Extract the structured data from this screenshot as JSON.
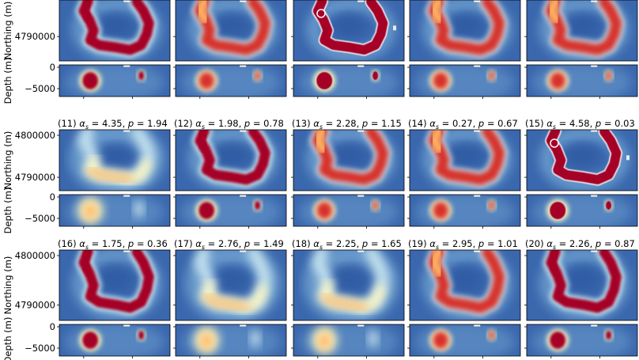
{
  "chart_data": {
    "type": "heatmap",
    "description_grid": "3 rows x 5 columns of paired map-view (Northing) and depth-section panels",
    "colormap": [
      "#3a67ad",
      "#6d9fcf",
      "#c5e2ee",
      "#fff8c0",
      "#fcb060",
      "#d7302b",
      "#a50026"
    ],
    "ylabels": {
      "northing": "Northing (m)",
      "depth": "Depth (m)"
    },
    "northing_ticks": [
      {
        "value": 4800000,
        "label": "4800000"
      },
      {
        "value": 4790000,
        "label": "4790000"
      }
    ],
    "depth_ticks": [
      {
        "value": 0,
        "label": "0"
      },
      {
        "value": -5000,
        "label": "−5000"
      }
    ],
    "panels": [
      {
        "index": 6,
        "label": "",
        "alpha_s": null,
        "p": null,
        "style": "sharp"
      },
      {
        "index": 7,
        "label": "",
        "alpha_s": null,
        "p": null,
        "style": "medium"
      },
      {
        "index": 8,
        "label": "",
        "alpha_s": null,
        "p": null,
        "style": "blocky"
      },
      {
        "index": 9,
        "label": "",
        "alpha_s": null,
        "p": null,
        "style": "medium"
      },
      {
        "index": 10,
        "label": "",
        "alpha_s": null,
        "p": null,
        "style": "medium"
      },
      {
        "index": 11,
        "label": "(11)",
        "alpha_s": "4.35",
        "p": "1.94",
        "style": "smooth"
      },
      {
        "index": 12,
        "label": "(12)",
        "alpha_s": "1.98",
        "p": "0.78",
        "style": "sharp"
      },
      {
        "index": 13,
        "label": "(13)",
        "alpha_s": "2.28",
        "p": "1.15",
        "style": "medium"
      },
      {
        "index": 14,
        "label": "(14)",
        "alpha_s": "0.27",
        "p": "0.67",
        "style": "medium"
      },
      {
        "index": 15,
        "label": "(15)",
        "alpha_s": "4.58",
        "p": "0.03",
        "style": "blocky"
      },
      {
        "index": 16,
        "label": "(16)",
        "alpha_s": "1.75",
        "p": "0.36",
        "style": "sharp"
      },
      {
        "index": 17,
        "label": "(17)",
        "alpha_s": "2.76",
        "p": "1.49",
        "style": "smooth"
      },
      {
        "index": 18,
        "label": "(18)",
        "alpha_s": "2.25",
        "p": "1.65",
        "style": "smooth"
      },
      {
        "index": 19,
        "label": "(19)",
        "alpha_s": "2.95",
        "p": "1.01",
        "style": "medium"
      },
      {
        "index": 20,
        "label": "(20)",
        "alpha_s": "2.26",
        "p": "0.87",
        "style": "sharp"
      }
    ]
  }
}
